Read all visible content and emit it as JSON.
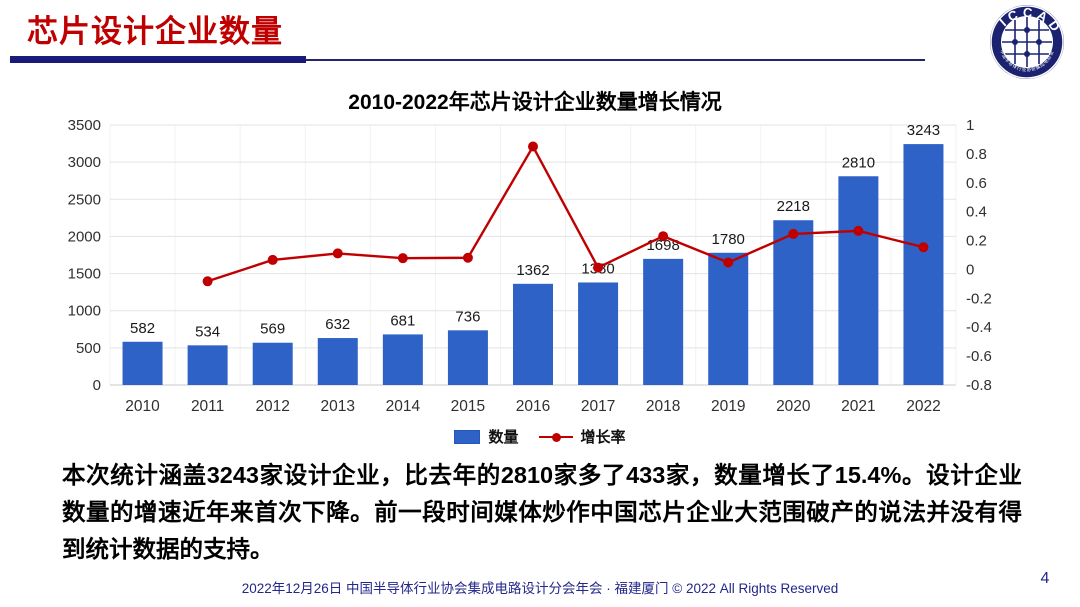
{
  "header": {
    "title": "芯片设计企业数量"
  },
  "logo": {
    "label": "ICCAD",
    "ring_text": "中国半导体行业协会集成电路设计分会"
  },
  "chart_data": {
    "type": "bar",
    "title": "2010-2022年芯片设计企业数量增长情况",
    "categories": [
      "2010",
      "2011",
      "2012",
      "2013",
      "2014",
      "2015",
      "2016",
      "2017",
      "2018",
      "2019",
      "2020",
      "2021",
      "2022"
    ],
    "series": [
      {
        "name": "数量",
        "type": "bar",
        "axis": "left",
        "color": "#2E62C6",
        "values": [
          582,
          534,
          569,
          632,
          681,
          736,
          1362,
          1380,
          1698,
          1780,
          2218,
          2810,
          3243
        ]
      },
      {
        "name": "增长率",
        "type": "line",
        "axis": "right",
        "color": "#C00000",
        "values": [
          null,
          -0.082,
          0.066,
          0.111,
          0.078,
          0.081,
          0.851,
          0.013,
          0.23,
          0.048,
          0.246,
          0.267,
          0.154
        ]
      }
    ],
    "left_axis": {
      "min": 0,
      "max": 3500,
      "step": 500,
      "ticks": [
        0,
        500,
        1000,
        1500,
        2000,
        2500,
        3000,
        3500
      ]
    },
    "right_axis": {
      "min": -0.8,
      "max": 1,
      "step": 0.2,
      "ticks": [
        "1",
        "0.8",
        "0.6",
        "0.4",
        "0.2",
        "0",
        "-0.2",
        "-0.4",
        "-0.6",
        "-0.8"
      ]
    },
    "grid": true,
    "legend_position": "bottom",
    "bar_label_color": "#1a1a1a"
  },
  "body": {
    "paragraph": "本次统计涵盖3243家设计企业，比去年的2810家多了433家，数量增长了15.4%。设计企业数量的增速近年来首次下降。前一段时间媒体炒作中国芯片企业大范围破产的说法并没有得到统计数据的支持。"
  },
  "footer": {
    "text": "2022年12月26日 中国半导体行业协会集成电路设计分会年会 · 福建厦门 © 2022 All Rights Reserved",
    "page": "4"
  },
  "colors": {
    "accent_red": "#C00000",
    "navy": "#191A7A",
    "bar_blue": "#2E62C6",
    "line_red": "#C00000",
    "gridline": "#E3E3E3"
  }
}
